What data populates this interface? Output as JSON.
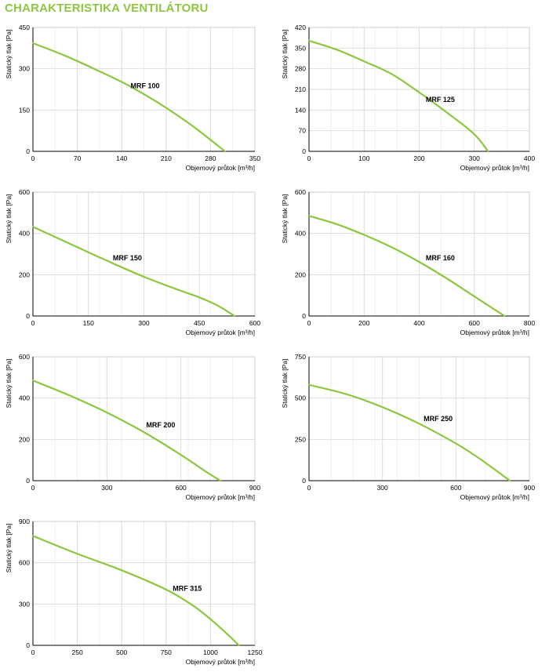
{
  "page": {
    "title": "CHARAKTERISTIKA VENTILÁTORU"
  },
  "colors": {
    "curve": "#8dc63f",
    "title": "#8dc63f",
    "grid": "#dddddd",
    "axis": "#000000"
  },
  "chart_data": [
    {
      "type": "line",
      "title": "",
      "label": "MRF 100",
      "xlabel": "Objemový průtok [m³/h]",
      "ylabel": "Statický tlak [Pa]",
      "xlim": [
        0,
        350
      ],
      "ylim": [
        0,
        450
      ],
      "xticks": [
        0,
        70,
        140,
        210,
        280,
        350
      ],
      "yticks": [
        0,
        150,
        300,
        450
      ],
      "x": [
        0,
        50,
        100,
        150,
        200,
        250,
        303
      ],
      "y": [
        393,
        348,
        296,
        240,
        173,
        95,
        0
      ]
    },
    {
      "type": "line",
      "title": "",
      "label": "MRF 125",
      "xlabel": "Objemový průtok [m³/h]",
      "ylabel": "Statický tlak [Pa]",
      "xlim": [
        0,
        400
      ],
      "ylim": [
        0,
        420
      ],
      "xticks": [
        0,
        100,
        200,
        300,
        400
      ],
      "yticks": [
        0,
        70,
        140,
        210,
        280,
        350,
        420
      ],
      "x": [
        0,
        50,
        100,
        150,
        200,
        250,
        300,
        325
      ],
      "y": [
        375,
        345,
        305,
        262,
        200,
        132,
        58,
        0
      ]
    },
    {
      "type": "line",
      "title": "",
      "label": "MRF 150",
      "xlabel": "Objemový průtok [m³/h]",
      "ylabel": "Statický tlak [Pa]",
      "xlim": [
        0,
        600
      ],
      "ylim": [
        0,
        600
      ],
      "xticks": [
        0,
        150,
        300,
        450,
        600
      ],
      "yticks": [
        0,
        200,
        400,
        600
      ],
      "x": [
        0,
        100,
        200,
        300,
        400,
        450,
        500,
        545
      ],
      "y": [
        432,
        350,
        268,
        190,
        122,
        90,
        50,
        0
      ]
    },
    {
      "type": "line",
      "title": "",
      "label": "MRF 160",
      "xlabel": "Objemový průtok [m³/h]",
      "ylabel": "Statický tlak [Pa]",
      "xlim": [
        0,
        800
      ],
      "ylim": [
        0,
        600
      ],
      "xticks": [
        0,
        200,
        400,
        600,
        800
      ],
      "yticks": [
        0,
        200,
        400,
        600
      ],
      "x": [
        0,
        100,
        200,
        300,
        400,
        500,
        600,
        710
      ],
      "y": [
        485,
        445,
        393,
        333,
        262,
        182,
        95,
        0
      ]
    },
    {
      "type": "line",
      "title": "",
      "label": "MRF 200",
      "xlabel": "Objemový průtok [m³/h]",
      "ylabel": "Statický tlak [Pa]",
      "xlim": [
        0,
        900
      ],
      "ylim": [
        0,
        600
      ],
      "xticks": [
        0,
        300,
        600,
        900
      ],
      "yticks": [
        0,
        200,
        400,
        600
      ],
      "x": [
        0,
        150,
        300,
        450,
        600,
        700,
        760
      ],
      "y": [
        485,
        412,
        330,
        235,
        125,
        45,
        0
      ]
    },
    {
      "type": "line",
      "title": "",
      "label": "MRF 250",
      "xlabel": "Objemový průtok [m³/h]",
      "ylabel": "Statický tlak [Pa]",
      "xlim": [
        0,
        900
      ],
      "ylim": [
        0,
        750
      ],
      "xticks": [
        0,
        300,
        600,
        900
      ],
      "yticks": [
        0,
        250,
        500,
        750
      ],
      "x": [
        0,
        150,
        300,
        450,
        600,
        700,
        820
      ],
      "y": [
        580,
        525,
        445,
        345,
        225,
        130,
        0
      ]
    },
    {
      "type": "line",
      "title": "",
      "label": "MRF 315",
      "xlabel": "Objemový průtok [m³/h]",
      "ylabel": "Statický tlak [Pa]",
      "xlim": [
        0,
        1250
      ],
      "ylim": [
        0,
        900
      ],
      "xticks": [
        0,
        250,
        500,
        750,
        1000,
        1250
      ],
      "yticks": [
        0,
        300,
        600,
        900
      ],
      "x": [
        0,
        250,
        500,
        750,
        900,
        1000,
        1100,
        1160
      ],
      "y": [
        795,
        665,
        545,
        405,
        290,
        190,
        75,
        0
      ]
    }
  ]
}
